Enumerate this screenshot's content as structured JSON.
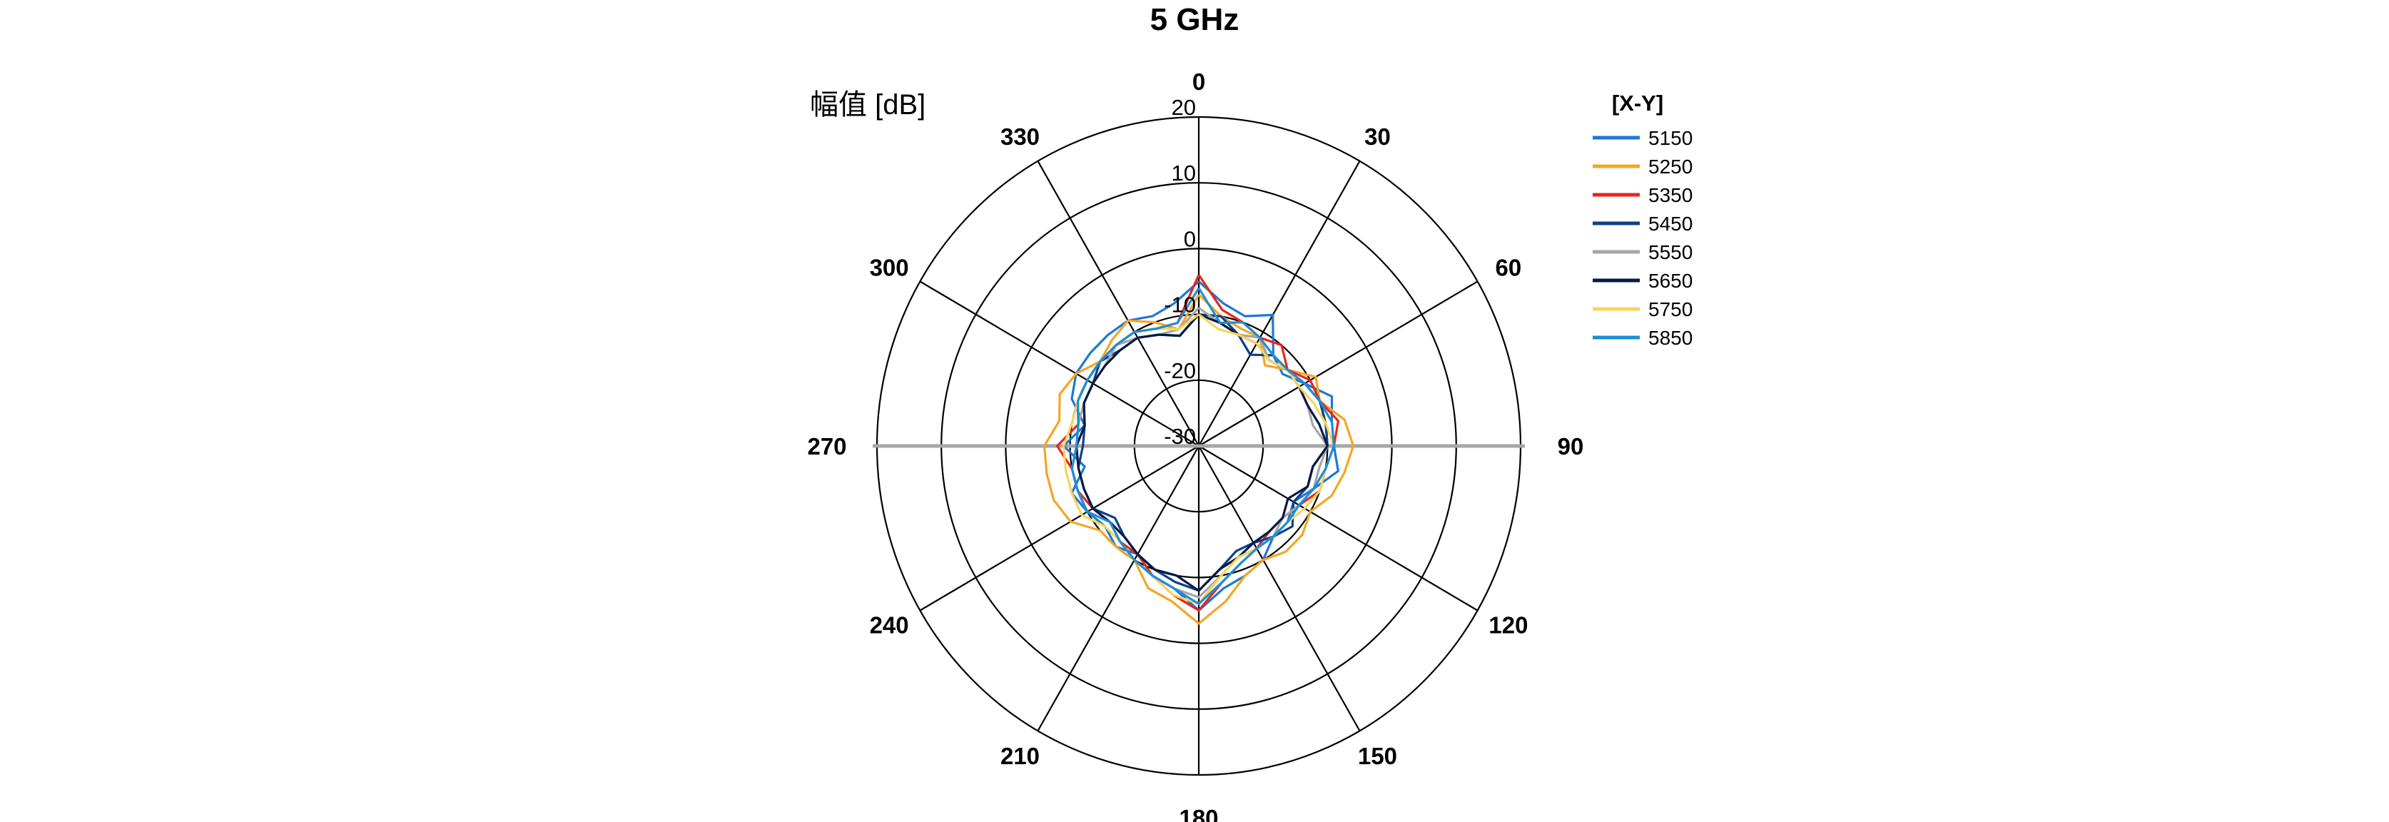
{
  "chart_data": {
    "type": "polar-line",
    "title": "5 GHz",
    "rlabel": "幅值 [dB]",
    "rlim": [
      -30,
      20
    ],
    "r_ticks": [
      20,
      10,
      0,
      -10,
      -20,
      -30
    ],
    "r_tick_labels": [
      "20",
      "10",
      "0",
      "-10",
      "-20",
      "-30"
    ],
    "theta_ticks": [
      0,
      30,
      60,
      90,
      120,
      150,
      180,
      210,
      240,
      270,
      300,
      330
    ],
    "theta_tick_labels": [
      "0",
      "30",
      "60",
      "90",
      "120",
      "150",
      "180",
      "210",
      "240",
      "270",
      "300",
      "330"
    ],
    "theta_zero": "top",
    "theta_direction": "clockwise",
    "grid": true,
    "legend_title": "[X-Y]",
    "legend_position": "right",
    "theta": [
      0,
      10,
      20,
      30,
      40,
      50,
      60,
      70,
      80,
      90,
      100,
      110,
      120,
      130,
      140,
      150,
      160,
      170,
      180,
      190,
      200,
      210,
      220,
      230,
      240,
      250,
      260,
      270,
      280,
      290,
      300,
      310,
      320,
      330,
      340,
      350
    ],
    "series": [
      {
        "name": "5150",
        "color": "#1f77d4",
        "values": [
          -5,
          -8,
          -9,
          -7,
          -12,
          -13,
          -11,
          -8,
          -9,
          -9,
          -8,
          -11,
          -13,
          -12,
          -12,
          -10,
          -9,
          -8,
          -5,
          -8,
          -9,
          -11,
          -10,
          -11,
          -10,
          -9,
          -12,
          -9,
          -12,
          -9,
          -8,
          -8,
          -8,
          -8,
          -9,
          -8
        ]
      },
      {
        "name": "5250",
        "color": "#f5a623",
        "values": [
          -7,
          -10,
          -11,
          -11,
          -14,
          -12,
          -9,
          -10,
          -7,
          -6,
          -7,
          -8,
          -10,
          -9,
          -9,
          -10,
          -9,
          -6,
          -3,
          -6,
          -7,
          -10,
          -10,
          -10,
          -7,
          -6,
          -6,
          -6,
          -8,
          -7,
          -8,
          -10,
          -9,
          -8,
          -10,
          -12
        ]
      },
      {
        "name": "5350",
        "color": "#e8261c",
        "values": [
          -4,
          -9,
          -10,
          -11,
          -10,
          -12,
          -10,
          -10,
          -8,
          -9,
          -10,
          -10,
          -12,
          -13,
          -13,
          -12,
          -11,
          -9,
          -5,
          -7,
          -9,
          -11,
          -11,
          -12,
          -11,
          -10,
          -10,
          -8,
          -11,
          -10,
          -10,
          -10,
          -10,
          -10,
          -11,
          -11
        ]
      },
      {
        "name": "5450",
        "color": "#0e3f8a",
        "values": [
          -10,
          -10,
          -12,
          -14,
          -12,
          -12,
          -11,
          -10,
          -10,
          -10,
          -12,
          -12,
          -13,
          -11,
          -12,
          -13,
          -13,
          -11,
          -8,
          -9,
          -10,
          -11,
          -12,
          -13,
          -11,
          -11,
          -11,
          -12,
          -12,
          -11,
          -11,
          -10,
          -11,
          -11,
          -12,
          -13
        ]
      },
      {
        "name": "5550",
        "color": "#a6a6a6",
        "values": [
          -9,
          -11,
          -12,
          -11,
          -13,
          -12,
          -12,
          -12,
          -12,
          -10,
          -11,
          -11,
          -12,
          -13,
          -12,
          -12,
          -12,
          -10,
          -7,
          -8,
          -9,
          -10,
          -11,
          -12,
          -10,
          -10,
          -10,
          -11,
          -11,
          -11,
          -11,
          -11,
          -10,
          -11,
          -12,
          -12
        ]
      },
      {
        "name": "5650",
        "color": "#051a45",
        "values": [
          -10,
          -11,
          -12,
          -12,
          -13,
          -12,
          -12,
          -12,
          -11,
          -10,
          -12,
          -12,
          -14,
          -13,
          -13,
          -13,
          -12,
          -11,
          -8,
          -10,
          -10,
          -11,
          -12,
          -12,
          -11,
          -11,
          -11,
          -11,
          -12,
          -11,
          -11,
          -11,
          -11,
          -11,
          -12,
          -13
        ]
      },
      {
        "name": "5750",
        "color": "#f7d55c",
        "values": [
          -10,
          -12,
          -12,
          -12,
          -13,
          -12,
          -12,
          -11,
          -10,
          -9,
          -10,
          -10,
          -11,
          -12,
          -12,
          -12,
          -12,
          -10,
          -6,
          -7,
          -9,
          -10,
          -11,
          -11,
          -9,
          -9,
          -9,
          -9,
          -10,
          -10,
          -10,
          -10,
          -10,
          -10,
          -11,
          -12
        ]
      },
      {
        "name": "5850",
        "color": "#1c8ed6",
        "values": [
          -6,
          -11,
          -10,
          -11,
          -12,
          -12,
          -11,
          -10,
          -9,
          -9,
          -10,
          -11,
          -12,
          -12,
          -12,
          -12,
          -11,
          -9,
          -6,
          -8,
          -9,
          -10,
          -11,
          -12,
          -10,
          -10,
          -10,
          -11,
          -11,
          -10,
          -10,
          -10,
          -10,
          -10,
          -11,
          -11
        ]
      }
    ]
  }
}
